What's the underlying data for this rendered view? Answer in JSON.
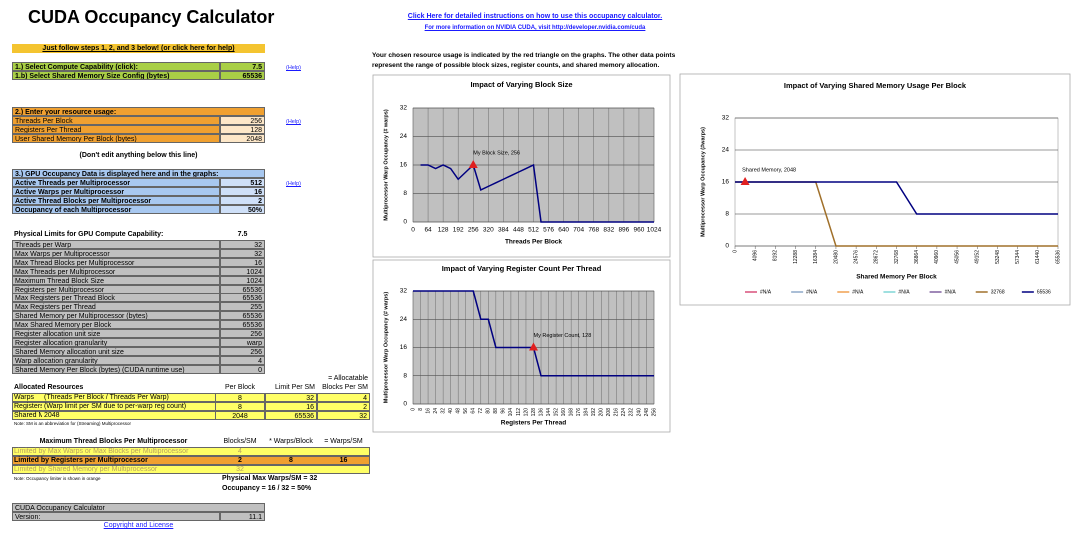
{
  "title": "CUDA Occupancy Calculator",
  "links": {
    "instructions": "Click Here for detailed instructions on how to use this occupancy calculator.",
    "more_info": "For more information on NVIDIA CUDA, visit http://developer.nvidia.com/cuda"
  },
  "explanation": "Your chosen resource usage is indicated by the red triangle on the graphs.  The other data points represent the range of possible block sizes, register counts, and shared memory allocation.",
  "intro": "Just follow steps 1, 2, and 3 below! (or click here for help)",
  "help": [
    "(Help)",
    "(Help)",
    "(Help)"
  ],
  "step1": [
    [
      "1.) Select Compute Capability (click):",
      "7.5"
    ],
    [
      "1.b) Select Shared Memory Size Config (bytes)",
      "65536"
    ]
  ],
  "step2": {
    "title": "2.) Enter your resource usage:",
    "rows": [
      [
        "Threads Per Block",
        "256"
      ],
      [
        "Registers Per Thread",
        "128"
      ],
      [
        "User Shared Memory Per Block (bytes)",
        "2048"
      ]
    ]
  },
  "no_edit": "(Don't edit anything below this line)",
  "step3": {
    "title": "3.) GPU Occupancy Data is displayed here and in the graphs:",
    "rows": [
      [
        "Active Threads per Multiprocessor",
        "512"
      ],
      [
        "Active Warps per Multiprocessor",
        "16"
      ],
      [
        "Active Thread Blocks per Multiprocessor",
        "2"
      ],
      [
        "Occupancy of each Multiprocessor",
        "50%"
      ]
    ]
  },
  "physical": {
    "title": "Physical Limits for GPU Compute Capability:",
    "value": "7.5",
    "rows": [
      [
        "Threads per Warp",
        "32"
      ],
      [
        "Max Warps per Multiprocessor",
        "32"
      ],
      [
        "Max Thread Blocks per Multiprocessor",
        "16"
      ],
      [
        "Max Threads per Multiprocessor",
        "1024"
      ],
      [
        "Maximum Thread Block Size",
        "1024"
      ],
      [
        "Registers per Multiprocessor",
        "65536"
      ],
      [
        "Max Registers per Thread Block",
        "65536"
      ],
      [
        "Max Registers per Thread",
        "255"
      ],
      [
        "Shared Memory per Multiprocessor (bytes)",
        "65536"
      ],
      [
        "Max Shared Memory per Block",
        "65536"
      ],
      [
        "Register allocation unit size",
        "256"
      ],
      [
        "Register allocation granularity",
        "warp"
      ],
      [
        "Shared Memory allocation unit size",
        "256"
      ],
      [
        "Warp allocation granularity",
        "4"
      ],
      [
        "Shared Memory Per Block (bytes) (CUDA runtime use)",
        "0"
      ]
    ]
  },
  "allocated": {
    "allocatable": "= Allocatable",
    "header": [
      "Allocated Resources",
      "Per Block",
      "Limit Per SM",
      "Blocks Per SM"
    ],
    "rows": [
      [
        "Warps",
        "(Threads Per Block / Threads Per Warp)",
        "8",
        "32",
        "4"
      ],
      [
        "Registers",
        "(Warp limit per SM due to per-warp reg count)",
        "8",
        "16",
        "2"
      ],
      [
        "Shared Memory (Bytes)",
        "2048",
        "65536",
        "32"
      ]
    ],
    "note": "Note: SM is an abbreviation for (Streaming) Multiprocessor"
  },
  "max_blocks": {
    "header": [
      "Maximum Thread Blocks Per Multiprocessor",
      "Blocks/SM",
      "* Warps/Block",
      "= Warps/SM"
    ],
    "rows": [
      [
        "Limited by Max Warps or Max Blocks per Multiprocessor",
        "4"
      ],
      [
        "Limited by Registers per Multiprocessor",
        "2",
        "8",
        "16"
      ],
      [
        "Limited by Shared Memory per Multiprocessor",
        "32"
      ]
    ],
    "note": "Note: Occupancy limiter is shown in orange",
    "physical_max": "Physical Max Warps/SM = 32",
    "occupancy": "Occupancy = 16 / 32 = 50%"
  },
  "footer": {
    "name": "CUDA Occupancy Calculator",
    "version_label": "Version:",
    "version": "11.1",
    "copyright": "Copyright and License"
  },
  "chart_data": [
    {
      "type": "line",
      "title": "Impact of Varying Block Size",
      "x_label": "Threads Per Block",
      "y_label": "Multiprocessor Warp Occupancy (# warps)",
      "x": [
        32,
        64,
        96,
        128,
        160,
        192,
        224,
        256,
        288,
        320,
        352,
        384,
        416,
        448,
        480,
        512,
        544,
        576,
        608,
        640,
        672,
        704,
        736,
        768,
        800,
        832,
        864,
        896,
        928,
        960,
        992,
        1024
      ],
      "series": [
        {
          "color": "#000080",
          "values": [
            16,
            16,
            15,
            16,
            15,
            12,
            14,
            16,
            9,
            10,
            11,
            12,
            13,
            14,
            15,
            16,
            0,
            0,
            0,
            0,
            0,
            0,
            0,
            0,
            0,
            0,
            0,
            0,
            0,
            0,
            0,
            0
          ]
        }
      ],
      "marker": {
        "x": 256,
        "y": 16,
        "label": "My Block Size, 256",
        "color": "#e02020"
      },
      "xlim": [
        0,
        1024
      ],
      "xticks": [
        0,
        64,
        128,
        192,
        256,
        320,
        384,
        448,
        512,
        576,
        640,
        704,
        768,
        832,
        896,
        960,
        1024
      ],
      "ylim": [
        0,
        32
      ],
      "yticks": [
        0,
        8,
        16,
        24,
        32
      ],
      "grid": "both",
      "plot_color": "#c0c0c0"
    },
    {
      "type": "line",
      "title": "Impact of Varying Register Count Per Thread",
      "x_label": "Registers Per Thread",
      "y_label": "Multiprocessor Warp Occupancy (# warps)",
      "x": [
        0,
        8,
        16,
        24,
        32,
        40,
        48,
        56,
        64,
        72,
        80,
        88,
        96,
        104,
        112,
        120,
        128,
        136,
        144,
        152,
        160,
        168,
        176,
        184,
        192,
        200,
        208,
        216,
        224,
        232,
        240,
        248,
        256
      ],
      "series": [
        {
          "color": "#000080",
          "values": [
            32,
            32,
            32,
            32,
            32,
            32,
            32,
            32,
            32,
            24,
            24,
            16,
            16,
            16,
            16,
            16,
            16,
            8,
            8,
            8,
            8,
            8,
            8,
            8,
            8,
            8,
            8,
            8,
            8,
            8,
            8,
            8,
            8
          ]
        }
      ],
      "marker": {
        "x": 128,
        "y": 16,
        "label": "My Register Count, 128",
        "color": "#e02020"
      },
      "xlim": [
        0,
        256
      ],
      "xticks": [
        0,
        8,
        16,
        24,
        32,
        40,
        48,
        56,
        64,
        72,
        80,
        88,
        96,
        104,
        112,
        120,
        128,
        136,
        144,
        152,
        160,
        168,
        176,
        184,
        192,
        200,
        208,
        216,
        224,
        232,
        240,
        248,
        256
      ],
      "ylim": [
        0,
        32
      ],
      "yticks": [
        0,
        8,
        16,
        24,
        32
      ],
      "grid": "both",
      "plot_color": "#c0c0c0"
    },
    {
      "type": "line",
      "title": "Impact of Varying Shared Memory Usage Per Block",
      "x_label": "Shared Memory Per Block",
      "y_label": "Multiprocessor Warp Occupancy (#warps)",
      "x": [
        0,
        4096,
        8192,
        12288,
        16384,
        20480,
        24576,
        28672,
        32768,
        36864,
        40960,
        45056,
        49152,
        53248,
        57344,
        61440,
        65536
      ],
      "series": [
        {
          "name": "#N/A",
          "color": "#d9507a",
          "values": [
            null,
            null,
            null,
            null,
            null,
            null,
            null,
            null,
            null,
            null,
            null,
            null,
            null,
            null,
            null,
            null,
            null
          ]
        },
        {
          "name": "#N/A",
          "color": "#8ea9c9",
          "values": [
            null,
            null,
            null,
            null,
            null,
            null,
            null,
            null,
            null,
            null,
            null,
            null,
            null,
            null,
            null,
            null,
            null
          ]
        },
        {
          "name": "#N/A",
          "color": "#f0a050",
          "values": [
            null,
            null,
            null,
            null,
            null,
            null,
            null,
            null,
            null,
            null,
            null,
            null,
            null,
            null,
            null,
            null,
            null
          ]
        },
        {
          "name": "#N/A",
          "color": "#7fd6d6",
          "values": [
            null,
            null,
            null,
            null,
            null,
            null,
            null,
            null,
            null,
            null,
            null,
            null,
            null,
            null,
            null,
            null,
            null
          ]
        },
        {
          "name": "#N/A",
          "color": "#8060a0",
          "values": [
            null,
            null,
            null,
            null,
            null,
            null,
            null,
            null,
            null,
            null,
            null,
            null,
            null,
            null,
            null,
            null,
            null
          ]
        },
        {
          "name": "32768",
          "color": "#a0702a",
          "values": [
            16,
            16,
            16,
            16,
            16,
            0,
            0,
            0,
            0,
            0,
            0,
            0,
            0,
            0,
            0,
            0,
            0
          ]
        },
        {
          "name": "65536",
          "color": "#000080",
          "values": [
            16,
            16,
            16,
            16,
            16,
            16,
            16,
            16,
            16,
            8,
            8,
            8,
            8,
            8,
            8,
            8,
            8
          ]
        }
      ],
      "marker": {
        "x": 2048,
        "y": 16,
        "label": "Shared Memory, 2048",
        "color": "#e02020"
      },
      "xlim": [
        0,
        65536
      ],
      "xticks": [
        0,
        4096,
        8192,
        12288,
        16384,
        20480,
        24576,
        28672,
        32768,
        36864,
        40960,
        45056,
        49152,
        53248,
        57344,
        61440,
        65536
      ],
      "ylim": [
        0,
        32
      ],
      "yticks": [
        0,
        8,
        16,
        24,
        32
      ],
      "grid": "y",
      "plot_color": "#ffffff"
    }
  ]
}
